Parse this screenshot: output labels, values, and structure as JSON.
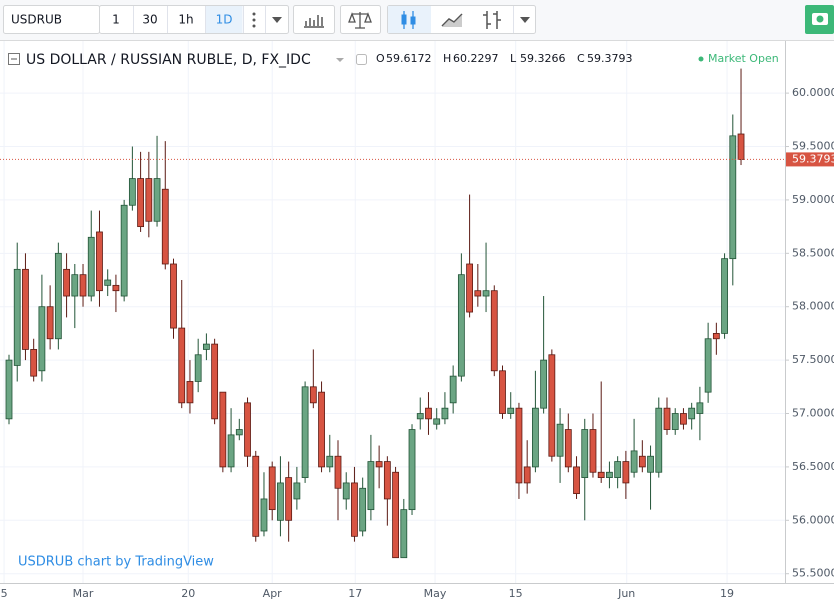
{
  "toolbar": {
    "symbol": "USDRUB",
    "intervals": [
      "1",
      "30",
      "1h",
      "1D"
    ]
  },
  "chart_data": {
    "type": "candlestick",
    "title": "US DOLLAR / RUSSIAN RUBLE, D, FX_IDC",
    "ohlc_labels": [
      "O",
      "H",
      "L",
      "C"
    ],
    "status": "Market Open",
    "watermark": "USDRUB chart by TradingView",
    "up_color": "#6ba583",
    "down_color": "#d75442",
    "up_border": "#225437",
    "down_border": "#5b1a13",
    "open": [
      56.95,
      57.45,
      58.35,
      57.6,
      57.4,
      58.0,
      57.7,
      58.35,
      58.1,
      58.3,
      58.1,
      58.7,
      58.2,
      58.2,
      58.1,
      58.95,
      59.2,
      59.2,
      58.8,
      59.1,
      58.4,
      57.8,
      57.3,
      57.3,
      57.6,
      57.65,
      57.2,
      56.5,
      56.8,
      57.1,
      56.6,
      55.9,
      56.5,
      56.0,
      56.4,
      56.2,
      56.4,
      57.25,
      57.2,
      56.5,
      56.6,
      56.2,
      56.35,
      55.9,
      56.1,
      56.55,
      56.55,
      56.45,
      55.65,
      56.1,
      56.95,
      57.05,
      56.9,
      56.95,
      57.1,
      57.35,
      58.4,
      58.15,
      58.1,
      58.15,
      57.4,
      57.0,
      57.05,
      56.5,
      56.5,
      57.05,
      57.55,
      56.6,
      56.85,
      56.5,
      56.4,
      56.85,
      56.45,
      56.4,
      56.4,
      56.55,
      56.45,
      56.6,
      56.45,
      56.45,
      57.05,
      56.85,
      57.0,
      56.95,
      57.0,
      57.2,
      57.75,
      57.75,
      58.45,
      59.6172
    ],
    "high": [
      57.55,
      58.6,
      58.5,
      57.7,
      58.3,
      58.2,
      58.6,
      58.5,
      58.4,
      58.4,
      58.9,
      58.9,
      58.35,
      58.3,
      59.0,
      59.5,
      59.45,
      59.45,
      59.6,
      59.55,
      58.45,
      58.25,
      57.5,
      57.7,
      57.75,
      57.7,
      57.2,
      57.05,
      56.95,
      57.15,
      56.65,
      56.45,
      56.55,
      56.6,
      56.55,
      56.5,
      57.3,
      57.6,
      57.3,
      56.8,
      56.75,
      56.45,
      56.5,
      56.4,
      56.8,
      56.7,
      56.6,
      56.5,
      56.2,
      56.9,
      57.15,
      57.2,
      57.05,
      57.2,
      57.45,
      58.5,
      59.05,
      58.4,
      58.6,
      58.2,
      57.45,
      57.2,
      57.1,
      56.75,
      57.4,
      58.1,
      57.6,
      57.05,
      57.0,
      56.6,
      56.95,
      57.0,
      57.3,
      56.55,
      56.6,
      56.65,
      56.95,
      56.75,
      56.7,
      57.15,
      57.15,
      57.05,
      57.05,
      57.1,
      57.25,
      57.85,
      57.85,
      58.5,
      59.8,
      60.2297
    ],
    "low": [
      56.9,
      57.3,
      57.5,
      57.3,
      57.3,
      57.6,
      57.6,
      57.9,
      57.8,
      58.0,
      58.05,
      58.0,
      58.1,
      57.95,
      58.05,
      58.9,
      58.7,
      58.65,
      58.75,
      58.35,
      57.7,
      57.05,
      57.0,
      57.2,
      57.5,
      56.9,
      56.45,
      56.45,
      56.75,
      56.5,
      55.8,
      55.85,
      56.0,
      55.85,
      55.8,
      56.1,
      56.35,
      57.05,
      56.45,
      56.45,
      56.0,
      56.1,
      55.8,
      55.85,
      56.0,
      56.3,
      55.95,
      55.65,
      55.65,
      56.05,
      56.85,
      56.8,
      56.85,
      56.9,
      57.0,
      57.3,
      57.9,
      58.0,
      57.95,
      57.35,
      56.95,
      56.95,
      56.2,
      56.25,
      56.45,
      57.0,
      56.55,
      56.35,
      56.45,
      56.2,
      56.0,
      56.4,
      56.35,
      56.3,
      56.3,
      56.2,
      56.4,
      56.45,
      56.1,
      56.4,
      56.8,
      56.8,
      56.85,
      56.85,
      56.75,
      57.1,
      57.55,
      57.7,
      58.2,
      59.3266
    ],
    "close": [
      57.5,
      58.35,
      57.6,
      57.35,
      58.0,
      57.7,
      58.5,
      58.1,
      58.3,
      58.1,
      58.65,
      58.15,
      58.25,
      58.15,
      58.95,
      59.2,
      58.75,
      58.8,
      59.2,
      58.4,
      57.8,
      57.1,
      57.1,
      57.55,
      57.65,
      56.95,
      56.5,
      56.8,
      56.85,
      56.6,
      55.85,
      56.2,
      56.1,
      56.35,
      56.0,
      56.35,
      57.25,
      57.1,
      56.5,
      56.6,
      56.3,
      56.35,
      55.85,
      56.3,
      56.55,
      56.5,
      56.2,
      55.65,
      56.1,
      56.85,
      57.0,
      56.95,
      56.95,
      57.05,
      57.35,
      58.3,
      57.95,
      58.1,
      58.15,
      57.4,
      57.0,
      57.05,
      56.35,
      56.35,
      57.05,
      57.5,
      56.6,
      56.9,
      56.5,
      56.25,
      56.85,
      56.45,
      56.4,
      56.45,
      56.55,
      56.35,
      56.65,
      56.5,
      56.6,
      57.05,
      56.85,
      57.0,
      56.9,
      57.05,
      57.1,
      57.7,
      57.7,
      58.45,
      59.6,
      59.3793
    ],
    "ylim": [
      55.413,
      60.488
    ],
    "yticks": [
      {
        "value": 55.5,
        "label": "55.5000"
      },
      {
        "value": 56.0,
        "label": "56.0000"
      },
      {
        "value": 56.5,
        "label": "56.5000"
      },
      {
        "value": 57.0,
        "label": "57.0000"
      },
      {
        "value": 57.5,
        "label": "57.5000"
      },
      {
        "value": 58.0,
        "label": "58.0000"
      },
      {
        "value": 58.5,
        "label": "58.5000"
      },
      {
        "value": 59.0,
        "label": "59.0000"
      },
      {
        "value": 59.5,
        "label": "59.5000"
      },
      {
        "value": 60.0,
        "label": "60.0000"
      }
    ],
    "xticks": [
      {
        "value": -0.6,
        "label": "5"
      },
      {
        "value": 9.0,
        "label": "Mar"
      },
      {
        "value": 21.8,
        "label": "20"
      },
      {
        "value": 32.0,
        "label": "Apr"
      },
      {
        "value": 42.1,
        "label": "17"
      },
      {
        "value": 51.8,
        "label": "May"
      },
      {
        "value": 61.6,
        "label": "15"
      },
      {
        "value": 75.1,
        "label": "Jun"
      },
      {
        "value": 87.3,
        "label": "19"
      }
    ],
    "grid": true
  }
}
